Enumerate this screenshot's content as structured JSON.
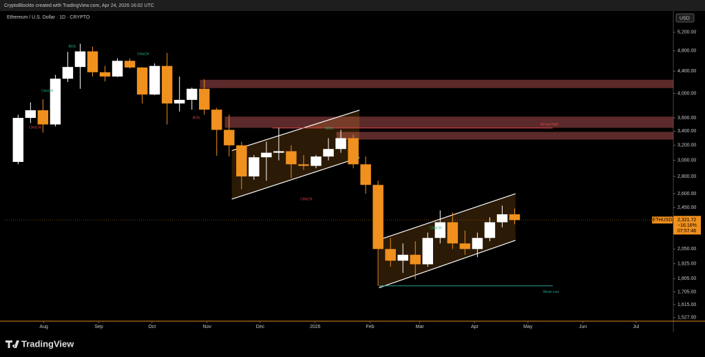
{
  "header": {
    "caption": "CryptoBlockto created with TradingView.com, Apr 24, 2026 16:02 UTC",
    "symbol": "Ethereum / U.S. Dollar · 1D · CRYPTO",
    "currency": "USD"
  },
  "footer": {
    "logo": "TradingView"
  },
  "chart_data": {
    "type": "candlestick",
    "up_color": "#ffffff",
    "down_color": "#f0901e",
    "x": [
      "2025-07-14",
      "2025-07-21",
      "2025-07-28",
      "2025-08-04",
      "2025-08-11",
      "2025-08-18",
      "2025-08-25",
      "2025-09-01",
      "2025-09-08",
      "2025-09-15",
      "2025-09-22",
      "2025-09-29",
      "2025-10-06",
      "2025-10-13",
      "2025-10-20",
      "2025-10-27",
      "2025-11-03",
      "2025-11-10",
      "2025-11-17",
      "2025-11-24",
      "2025-12-01",
      "2025-12-08",
      "2025-12-15",
      "2025-12-22",
      "2025-12-29",
      "2026-01-05",
      "2026-01-12",
      "2026-01-19",
      "2026-01-26",
      "2026-02-02",
      "2026-02-09",
      "2026-02-16",
      "2026-02-23",
      "2026-03-02",
      "2026-03-09",
      "2026-03-16",
      "2026-03-23",
      "2026-03-30",
      "2026-04-06",
      "2026-04-13",
      "2026-04-20"
    ],
    "open": [
      2980,
      3600,
      3720,
      3500,
      4260,
      4480,
      4790,
      4380,
      4300,
      4600,
      4470,
      3980,
      4500,
      3830,
      3890,
      4080,
      3730,
      3420,
      3200,
      2800,
      3040,
      3100,
      3120,
      2950,
      2930,
      3050,
      3150,
      3300,
      2950,
      2700,
      2050,
      1950,
      2000,
      1920,
      2150,
      2300,
      2100,
      2050,
      2150,
      2300,
      2380
    ],
    "high": [
      3650,
      3850,
      3900,
      4330,
      4780,
      4950,
      4890,
      4500,
      4650,
      4650,
      4480,
      4550,
      4760,
      4300,
      4100,
      4250,
      3760,
      3650,
      3250,
      3070,
      3250,
      3450,
      3200,
      3070,
      3070,
      3300,
      3420,
      3350,
      3050,
      2750,
      2150,
      2100,
      2120,
      2200,
      2420,
      2400,
      2220,
      2200,
      2350,
      2470,
      2440
    ],
    "low": [
      2950,
      3520,
      3380,
      3470,
      4200,
      4080,
      4300,
      4210,
      4290,
      4450,
      3830,
      3970,
      3500,
      3700,
      3730,
      3650,
      3060,
      3050,
      2650,
      2760,
      2750,
      3000,
      2780,
      2880,
      2900,
      3000,
      3100,
      2900,
      2600,
      1750,
      1900,
      1850,
      1800,
      1900,
      2100,
      2050,
      2000,
      1980,
      2120,
      2250,
      2280
    ],
    "close": [
      3600,
      3720,
      3500,
      4260,
      4480,
      4790,
      4380,
      4300,
      4600,
      4470,
      3980,
      4500,
      3830,
      3890,
      4080,
      3730,
      3420,
      3200,
      2800,
      3040,
      3100,
      3120,
      2950,
      2930,
      3050,
      3150,
      3300,
      2950,
      2700,
      2050,
      1950,
      2000,
      1920,
      2150,
      2300,
      2100,
      2050,
      2150,
      2300,
      2380,
      2321.72
    ],
    "log_scale": true,
    "ylim": [
      1504,
      5663
    ],
    "yticks": [
      {
        "value": 5200,
        "label": "5,200.00"
      },
      {
        "value": 4800,
        "label": "4,800.00"
      },
      {
        "value": 4400,
        "label": "4,400.00"
      },
      {
        "value": 4000,
        "label": "4,000.00"
      },
      {
        "value": 3600,
        "label": "3,600.00"
      },
      {
        "value": 3400,
        "label": "3,400.00"
      },
      {
        "value": 3200,
        "label": "3,200.00"
      },
      {
        "value": 3000,
        "label": "3,000.00"
      },
      {
        "value": 2800,
        "label": "2,800.00"
      },
      {
        "value": 2600,
        "label": "2,600.00"
      },
      {
        "value": 2450,
        "label": "2,450.00"
      },
      {
        "value": 2050,
        "label": "2,050.00"
      },
      {
        "value": 1925,
        "label": "1,925.00"
      },
      {
        "value": 1805,
        "label": "1,805.00"
      },
      {
        "value": 1705,
        "label": "1,705.00"
      },
      {
        "value": 1615,
        "label": "1,615.00"
      },
      {
        "value": 1527,
        "label": "1,527.00"
      }
    ],
    "xlim": [
      "2025-07-10",
      "2026-07-22"
    ],
    "xticks": [
      {
        "value": "2025-08-01",
        "label": "Aug"
      },
      {
        "value": "2025-09-01",
        "label": "Sep"
      },
      {
        "value": "2025-10-01",
        "label": "Oct"
      },
      {
        "value": "2025-11-01",
        "label": "Nov"
      },
      {
        "value": "2025-12-01",
        "label": "Dec"
      },
      {
        "value": "2026-01-01",
        "label": "2026"
      },
      {
        "value": "2026-02-01",
        "label": "Feb"
      },
      {
        "value": "2026-03-01",
        "label": "Mar"
      },
      {
        "value": "2026-04-01",
        "label": "Apr"
      },
      {
        "value": "2026-05-01",
        "label": "May"
      },
      {
        "value": "2026-06-01",
        "label": "Jun"
      },
      {
        "value": "2026-07-01",
        "label": "Jul"
      }
    ],
    "last_price": {
      "symbol": "ETHUSD",
      "price": {
        "value": 2321.72,
        "label": "2,321.72"
      },
      "change": {
        "value": -16.16,
        "label": "−16.16%"
      },
      "countdown": "07:57:46",
      "color": "#f0901e"
    },
    "zones": [
      {
        "from": "2025-10-28",
        "to": "2026-07-22",
        "top": 4240,
        "bottom": 4092,
        "color": "#a84c4c"
      },
      {
        "from": "2025-11-11",
        "to": "2026-07-22",
        "top": 3620,
        "bottom": 3450,
        "color": "#a84c4c"
      },
      {
        "from": "2026-01-13",
        "to": "2026-07-22",
        "top": 3390,
        "bottom": 3280,
        "color": "#a84c4c"
      }
    ],
    "channels": [
      {
        "from": "2025-11-15",
        "to": "2026-01-26",
        "upper": [
          3128,
          3722
        ],
        "lower": [
          2540,
          3036
        ],
        "color": "#f0901e"
      },
      {
        "from": "2026-02-06",
        "to": "2026-04-24",
        "upper": [
          2133,
          2600
        ],
        "lower": [
          1736,
          2128
        ],
        "color": "#f0901e"
      }
    ],
    "levels": [
      {
        "from": "2025-12-08",
        "to": "2026-05-15",
        "price": 3447,
        "color": "#e0404a"
      },
      {
        "from": "2026-02-06",
        "to": "2026-05-15",
        "price": 1750,
        "color": "#2aa198"
      }
    ],
    "annotations": [
      {
        "text": "BOS",
        "date": "2025-08-17",
        "price": 4886,
        "color": "#22b573"
      },
      {
        "text": "CHoCH",
        "date": "2025-09-26",
        "price": 4730,
        "color": "#22b573"
      },
      {
        "text": "CHoCH",
        "date": "2025-08-03",
        "price": 4040,
        "color": "#22b573"
      },
      {
        "text": "CHoCH",
        "date": "2025-07-27",
        "price": 3455,
        "color": "#e0404a"
      },
      {
        "text": "BOS",
        "date": "2025-10-26",
        "price": 3600,
        "color": "#e0404a"
      },
      {
        "text": "CHoCH",
        "date": "2025-12-27",
        "price": 2540,
        "color": "#e0404a"
      },
      {
        "text": "BOS",
        "date": "2026-01-09",
        "price": 3440,
        "color": "#22b573"
      },
      {
        "text": "CHoCH",
        "date": "2026-03-10",
        "price": 2240,
        "color": "#22b573"
      },
      {
        "text": "Strong High",
        "date": "2026-05-13",
        "price": 3500,
        "color": "#e0404a"
      },
      {
        "text": "Weak Low",
        "date": "2026-05-14",
        "price": 1705,
        "color": "#2aa198"
      }
    ]
  }
}
